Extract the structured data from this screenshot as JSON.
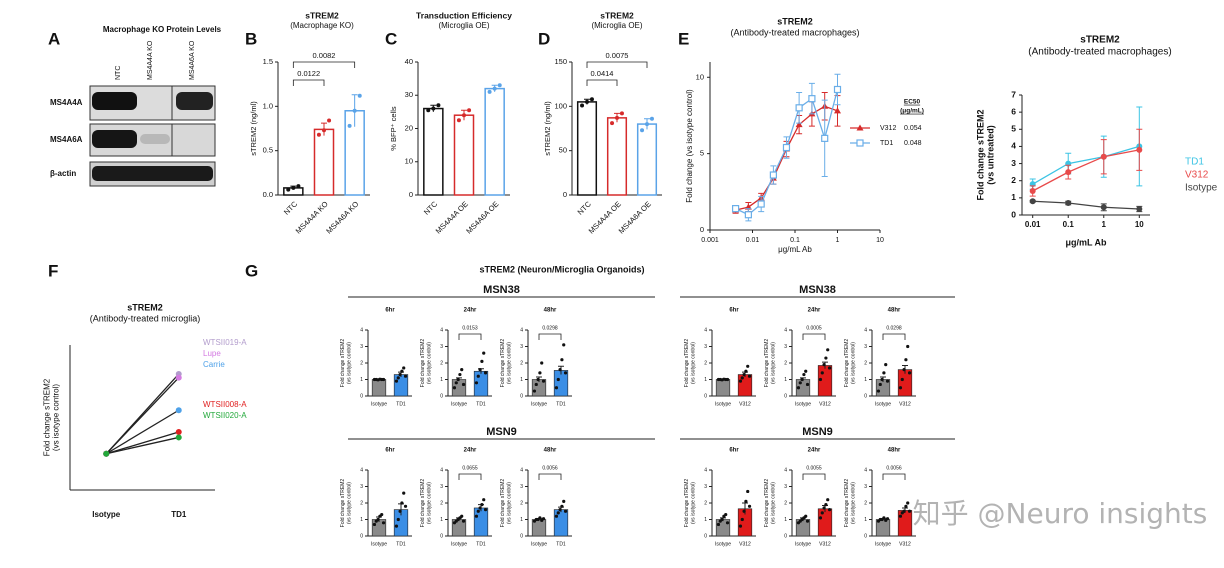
{
  "panel_labels": [
    "A",
    "B",
    "C",
    "D",
    "E",
    "F",
    "G"
  ],
  "blot": {
    "title": "Macrophage KO Protein Levels",
    "columns": [
      "NTC",
      "MS4A4A KO",
      "MS4A6A KO"
    ],
    "rows": [
      "MS4A4A",
      "MS4A6A",
      "β-actin"
    ]
  },
  "organoids": {
    "title": "sTREM2 (Neuron/Microglia Organoids)",
    "headers": [
      "MSN38",
      "MSN9",
      "MSN38",
      "MSN9"
    ]
  },
  "watermark": "知乎 @Neuro insights",
  "chart_data": [
    {
      "type": "bar",
      "title": [
        "sTREM2",
        "(Macrophage KO)"
      ],
      "ylabel": [
        "sTREM2 (ng/ml)"
      ],
      "categories": [
        "NTC",
        "MS4A4A KO",
        "MS4A6A KO"
      ],
      "colors": [
        "#111111",
        "#d62b2b",
        "#5aa3e8"
      ],
      "fill": false,
      "values": [
        0.08,
        0.74,
        0.95
      ],
      "errors": [
        0.02,
        0.07,
        0.18
      ],
      "points": [
        [
          0.06,
          0.08,
          0.1
        ],
        [
          0.68,
          0.73,
          0.84
        ],
        [
          0.78,
          0.95,
          1.12
        ]
      ],
      "ylim": [
        0,
        1.5
      ],
      "yticks": [
        {
          "value": 0,
          "label": "0.0"
        },
        {
          "value": 0.5,
          "label": "0.5"
        },
        {
          "value": 1,
          "label": "1.0"
        },
        {
          "value": 1.5,
          "label": "1.5"
        }
      ],
      "annotations": [
        "0.0122",
        "0.0082"
      ]
    },
    {
      "type": "bar",
      "title": [
        "Transduction Efficiency",
        "(Microglia OE)"
      ],
      "ylabel": [
        "% BFP⁺ cells"
      ],
      "categories": [
        "NTC",
        "MS4A4A OE",
        "MS4A6A OE"
      ],
      "colors": [
        "#111111",
        "#d62b2b",
        "#5aa3e8"
      ],
      "fill": false,
      "values": [
        26,
        24,
        32
      ],
      "errors": [
        1,
        1.5,
        1
      ],
      "points": [
        [
          25.5,
          26,
          27
        ],
        [
          22.5,
          24,
          25.5
        ],
        [
          31,
          32,
          33
        ]
      ],
      "ylim": [
        0,
        40
      ],
      "yticks": [
        0,
        10,
        20,
        30,
        40
      ],
      "annotations": []
    },
    {
      "type": "bar",
      "title": [
        "sTREM2",
        "(Microglia OE)"
      ],
      "ylabel": [
        "sTREM2 (ng/ml)"
      ],
      "categories": [
        "NTC",
        "MS4A4A OE",
        "MS4A6A OE"
      ],
      "colors": [
        "#111111",
        "#d62b2b",
        "#5aa3e8"
      ],
      "fill": false,
      "values": [
        105,
        87,
        80
      ],
      "errors": [
        3,
        5,
        6
      ],
      "points": [
        [
          101,
          105,
          108
        ],
        [
          81,
          87,
          92
        ],
        [
          73,
          80,
          86
        ]
      ],
      "ylim": [
        0,
        150
      ],
      "yticks": [
        0,
        50,
        100,
        150
      ],
      "annotations": [
        "0.0414",
        "0.0075"
      ]
    },
    {
      "type": "line",
      "title": [
        "sTREM2",
        "(Antibody-treated macrophages)"
      ],
      "ylabel": [
        "Fold change (vs isotype control)"
      ],
      "xlabel": "μg/mL Ab",
      "xscale": "log",
      "x": [
        0.004,
        0.008,
        0.016,
        0.031,
        0.063,
        0.125,
        0.25,
        0.5,
        1
      ],
      "xlim": [
        0.001,
        10
      ],
      "xticks": [
        0.001,
        0.01,
        0.1,
        1,
        10
      ],
      "ylim": [
        0,
        11
      ],
      "yticks": [
        0,
        5,
        10
      ],
      "ec50_header": [
        "EC50",
        "(μg/mL)"
      ],
      "series": [
        {
          "name": "V312",
          "color": "#d62b2b",
          "marker": "triangle",
          "ec50": 0.054,
          "values": [
            1.3,
            1.5,
            2.1,
            3.4,
            5.3,
            6.9,
            7.6,
            8.1,
            7.8
          ],
          "errors": [
            0.2,
            0.3,
            0.3,
            0.4,
            0.5,
            0.6,
            0.8,
            0.9,
            1.0
          ]
        },
        {
          "name": "TD1",
          "color": "#6aaee8",
          "marker": "square",
          "ec50": 0.048,
          "values": [
            1.4,
            1.0,
            1.7,
            3.6,
            5.4,
            8.0,
            8.6,
            6.0,
            9.2
          ],
          "errors": [
            0.2,
            0.4,
            0.5,
            0.6,
            0.7,
            1.0,
            1.0,
            2.5,
            1.0
          ]
        }
      ]
    },
    {
      "type": "line",
      "title": [
        "sTREM2",
        "(Antibody-treated macrophages)"
      ],
      "ylabel": [
        "Fold change sTREM2",
        "(vs untreated)"
      ],
      "xlabel": "μg/mL Ab",
      "xscale": "log",
      "x": [
        0.01,
        0.1,
        1,
        10
      ],
      "xlim": [
        0.005,
        20
      ],
      "xticks": [
        0.01,
        0.1,
        1,
        10
      ],
      "ylim": [
        0,
        7
      ],
      "yticks": [
        0,
        1,
        2,
        3,
        4,
        5,
        6,
        7
      ],
      "series": [
        {
          "name": "TD1",
          "color": "#3cc4e4",
          "marker": "circle",
          "values": [
            1.8,
            3.0,
            3.4,
            4.0
          ],
          "errors": [
            0.3,
            0.6,
            1.2,
            2.3
          ]
        },
        {
          "name": "V312",
          "color": "#e84a4a",
          "marker": "circle",
          "values": [
            1.4,
            2.5,
            3.4,
            3.8
          ],
          "errors": [
            0.3,
            0.4,
            1.0,
            1.2
          ]
        },
        {
          "name": "Isotype",
          "color": "#444444",
          "marker": "circle",
          "values": [
            0.8,
            0.7,
            0.45,
            0.35
          ],
          "errors": [
            0.05,
            0.1,
            0.2,
            0.15
          ]
        }
      ]
    },
    {
      "type": "line",
      "title": [
        "sTREM2",
        "(Antibody-treated microglia)"
      ],
      "ylabel": [
        "Fold change sTREM2",
        "(vs isotype control)"
      ],
      "categories": [
        "Isotype",
        "TD1"
      ],
      "ylim": [
        0,
        4
      ],
      "series": [
        {
          "name": "WTSII019-A",
          "color": "#b29ccc",
          "values": [
            1,
            3.2
          ]
        },
        {
          "name": "Lupe",
          "color": "#d47be2",
          "values": [
            1,
            3.1
          ]
        },
        {
          "name": "Carrie",
          "color": "#4ea1e8",
          "values": [
            1,
            2.2
          ]
        },
        {
          "name": "WTSII008-A",
          "color": "#e02020",
          "values": [
            1,
            1.6
          ]
        },
        {
          "name": "WTSII020-A",
          "color": "#22a83a",
          "values": [
            1,
            1.45
          ]
        }
      ]
    },
    {
      "type": "bar",
      "title": [
        "6hr"
      ],
      "ylabel": [
        "Fold change sTREM2",
        "(vs isotype control)"
      ],
      "categories": [
        "Isotype",
        "TD1"
      ],
      "colors": [
        "#8a8a8a",
        "#3b8ee5"
      ],
      "fill": true,
      "values": [
        1.0,
        1.3
      ],
      "errors": [
        0.02,
        0.15
      ],
      "points": [
        [
          1,
          1,
          0.98,
          1.02,
          1,
          1
        ],
        [
          0.9,
          1.1,
          1.3,
          1.5,
          1.7,
          1.2
        ]
      ],
      "ylim": [
        0,
        4
      ],
      "yticks": [
        0,
        1,
        2,
        3,
        4
      ],
      "annotations": []
    },
    {
      "type": "bar",
      "title": [
        "24hr"
      ],
      "ylabel": [
        "Fold change sTREM2",
        "(vs isotype control)"
      ],
      "categories": [
        "Isotype",
        "TD1"
      ],
      "colors": [
        "#8a8a8a",
        "#3b8ee5"
      ],
      "fill": true,
      "values": [
        1.0,
        1.5
      ],
      "errors": [
        0.1,
        0.15
      ],
      "points": [
        [
          0.5,
          0.8,
          1.0,
          1.3,
          1.6,
          0.7
        ],
        [
          0.8,
          1.2,
          1.6,
          2.1,
          2.6,
          1.4
        ]
      ],
      "ylim": [
        0,
        4
      ],
      "yticks": [
        0,
        1,
        2,
        3,
        4
      ],
      "annotations": [
        "0.0153"
      ]
    },
    {
      "type": "bar",
      "title": [
        "48hr"
      ],
      "ylabel": [
        "Fold change sTREM2",
        "(vs isotype control)"
      ],
      "categories": [
        "Isotype",
        "TD1"
      ],
      "colors": [
        "#8a8a8a",
        "#3b8ee5"
      ],
      "fill": true,
      "values": [
        1.0,
        1.55
      ],
      "errors": [
        0.15,
        0.25
      ],
      "points": [
        [
          0.3,
          0.7,
          1.0,
          1.4,
          2.0,
          0.9
        ],
        [
          0.5,
          1.0,
          1.6,
          2.2,
          3.1,
          1.4
        ]
      ],
      "ylim": [
        0,
        4
      ],
      "yticks": [
        0,
        1,
        2,
        3,
        4
      ],
      "annotations": [
        "0.0298"
      ]
    },
    {
      "type": "bar",
      "title": [
        "6hr"
      ],
      "ylabel": [
        "Fold change sTREM2",
        "(vs isotype control)"
      ],
      "categories": [
        "Isotype",
        "TD1"
      ],
      "colors": [
        "#8a8a8a",
        "#3b8ee5"
      ],
      "fill": true,
      "values": [
        1.0,
        1.6
      ],
      "errors": [
        0.15,
        0.35
      ],
      "points": [
        [
          0.7,
          0.9,
          1.0,
          1.2,
          1.3,
          0.8
        ],
        [
          0.6,
          1.0,
          1.5,
          2.0,
          2.6,
          1.8
        ]
      ],
      "ylim": [
        0,
        4
      ],
      "yticks": [
        0,
        1,
        2,
        3,
        4
      ],
      "annotations": []
    },
    {
      "type": "bar",
      "title": [
        "24hr"
      ],
      "ylabel": [
        "Fold change sTREM2",
        "(vs isotype control)"
      ],
      "categories": [
        "Isotype",
        "TD1"
      ],
      "colors": [
        "#8a8a8a",
        "#3b8ee5"
      ],
      "fill": true,
      "values": [
        1.0,
        1.7
      ],
      "errors": [
        0.1,
        0.2
      ],
      "points": [
        [
          0.8,
          0.9,
          1.0,
          1.1,
          1.2,
          0.9
        ],
        [
          1.2,
          1.5,
          1.7,
          1.9,
          2.2,
          1.6
        ]
      ],
      "ylim": [
        0,
        4
      ],
      "yticks": [
        0,
        1,
        2,
        3,
        4
      ],
      "annotations": [
        "0.0655"
      ]
    },
    {
      "type": "bar",
      "title": [
        "48hr"
      ],
      "ylabel": [
        "Fold change sTREM2",
        "(vs isotype control)"
      ],
      "categories": [
        "Isotype",
        "TD1"
      ],
      "colors": [
        "#8a8a8a",
        "#3b8ee5"
      ],
      "fill": true,
      "values": [
        1.0,
        1.6
      ],
      "errors": [
        0.05,
        0.15
      ],
      "points": [
        [
          0.9,
          1.0,
          1.0,
          1.1,
          0.95,
          1.05
        ],
        [
          1.2,
          1.4,
          1.6,
          1.8,
          2.1,
          1.5
        ]
      ],
      "ylim": [
        0,
        4
      ],
      "yticks": [
        0,
        1,
        2,
        3,
        4
      ],
      "annotations": [
        "0.0056"
      ]
    },
    {
      "type": "bar",
      "title": [
        "6hr"
      ],
      "ylabel": [
        "Fold change sTREM2",
        "(vs isotype control)"
      ],
      "categories": [
        "Isotype",
        "V312"
      ],
      "colors": [
        "#8a8a8a",
        "#e01b1b"
      ],
      "fill": true,
      "values": [
        1.0,
        1.3
      ],
      "errors": [
        0.02,
        0.15
      ],
      "points": [
        [
          1,
          1,
          0.98,
          1.02,
          1,
          1
        ],
        [
          0.9,
          1.1,
          1.3,
          1.5,
          1.8,
          1.2
        ]
      ],
      "ylim": [
        0,
        4
      ],
      "yticks": [
        0,
        1,
        2,
        3,
        4
      ],
      "annotations": []
    },
    {
      "type": "bar",
      "title": [
        "24hr"
      ],
      "ylabel": [
        "Fold change sTREM2",
        "(vs isotype control)"
      ],
      "categories": [
        "Isotype",
        "V312"
      ],
      "colors": [
        "#8a8a8a",
        "#e01b1b"
      ],
      "fill": true,
      "values": [
        1.0,
        1.85
      ],
      "errors": [
        0.1,
        0.2
      ],
      "points": [
        [
          0.5,
          0.8,
          1.0,
          1.3,
          1.5,
          0.7
        ],
        [
          1.0,
          1.4,
          1.9,
          2.3,
          2.8,
          1.7
        ]
      ],
      "ylim": [
        0,
        4
      ],
      "yticks": [
        0,
        1,
        2,
        3,
        4
      ],
      "annotations": [
        "0.0005"
      ]
    },
    {
      "type": "bar",
      "title": [
        "48hr"
      ],
      "ylabel": [
        "Fold change sTREM2",
        "(vs isotype control)"
      ],
      "categories": [
        "Isotype",
        "V312"
      ],
      "colors": [
        "#8a8a8a",
        "#e01b1b"
      ],
      "fill": true,
      "values": [
        1.0,
        1.6
      ],
      "errors": [
        0.15,
        0.25
      ],
      "points": [
        [
          0.3,
          0.7,
          1.0,
          1.4,
          1.9,
          0.9
        ],
        [
          0.5,
          1.0,
          1.6,
          2.2,
          3.0,
          1.4
        ]
      ],
      "ylim": [
        0,
        4
      ],
      "yticks": [
        0,
        1,
        2,
        3,
        4
      ],
      "annotations": [
        "0.0298"
      ]
    },
    {
      "type": "bar",
      "title": [
        "6hr"
      ],
      "ylabel": [
        "Fold change sTREM2",
        "(vs isotype control)"
      ],
      "categories": [
        "Isotype",
        "V312"
      ],
      "colors": [
        "#8a8a8a",
        "#e01b1b"
      ],
      "fill": true,
      "values": [
        1.0,
        1.65
      ],
      "errors": [
        0.1,
        0.35
      ],
      "points": [
        [
          0.7,
          0.9,
          1.0,
          1.2,
          1.3,
          0.8
        ],
        [
          0.6,
          1.0,
          1.5,
          2.1,
          2.7,
          1.8
        ]
      ],
      "ylim": [
        0,
        4
      ],
      "yticks": [
        0,
        1,
        2,
        3,
        4
      ],
      "annotations": []
    },
    {
      "type": "bar",
      "title": [
        "24hr"
      ],
      "ylabel": [
        "Fold change sTREM2",
        "(vs isotype control)"
      ],
      "categories": [
        "Isotype",
        "V312"
      ],
      "colors": [
        "#8a8a8a",
        "#e01b1b"
      ],
      "fill": true,
      "values": [
        1.0,
        1.65
      ],
      "errors": [
        0.1,
        0.2
      ],
      "points": [
        [
          0.8,
          0.9,
          1.0,
          1.1,
          1.2,
          0.9
        ],
        [
          1.1,
          1.4,
          1.7,
          1.9,
          2.2,
          1.6
        ]
      ],
      "ylim": [
        0,
        4
      ],
      "yticks": [
        0,
        1,
        2,
        3,
        4
      ],
      "annotations": [
        "0.0055"
      ]
    },
    {
      "type": "bar",
      "title": [
        "48hr"
      ],
      "ylabel": [
        "Fold change sTREM2",
        "(vs isotype control)"
      ],
      "categories": [
        "Isotype",
        "V312"
      ],
      "colors": [
        "#8a8a8a",
        "#e01b1b"
      ],
      "fill": true,
      "values": [
        1.0,
        1.55
      ],
      "errors": [
        0.05,
        0.15
      ],
      "points": [
        [
          0.9,
          1.0,
          1.0,
          1.1,
          0.95,
          1.05
        ],
        [
          1.2,
          1.4,
          1.5,
          1.8,
          2.0,
          1.5
        ]
      ],
      "ylim": [
        0,
        4
      ],
      "yticks": [
        0,
        1,
        2,
        3,
        4
      ],
      "annotations": [
        "0.0056"
      ]
    }
  ]
}
